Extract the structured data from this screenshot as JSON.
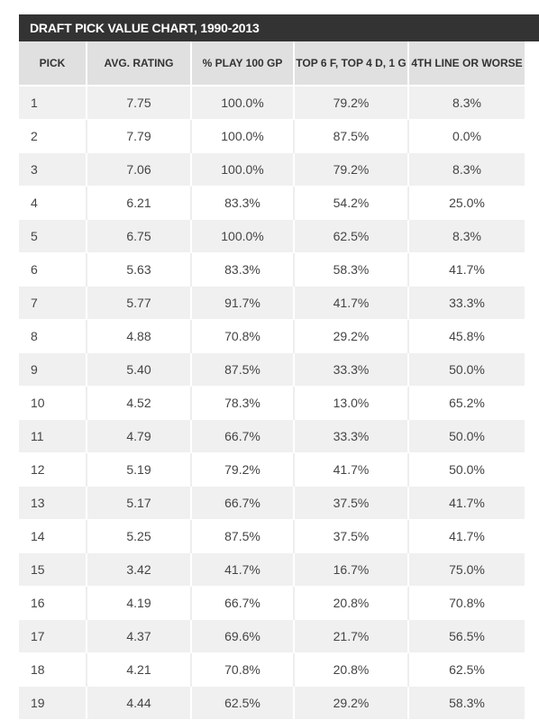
{
  "title": "DRAFT PICK VALUE CHART, 1990-2013",
  "columns": [
    "PICK",
    "AVG. RATING",
    "% PLAY 100 GP",
    "TOP 6 F, TOP 4 D, 1 G",
    "4TH LINE OR WORSE"
  ],
  "rows": [
    [
      "1",
      "7.75",
      "100.0%",
      "79.2%",
      "8.3%"
    ],
    [
      "2",
      "7.79",
      "100.0%",
      "87.5%",
      "0.0%"
    ],
    [
      "3",
      "7.06",
      "100.0%",
      "79.2%",
      "8.3%"
    ],
    [
      "4",
      "6.21",
      "83.3%",
      "54.2%",
      "25.0%"
    ],
    [
      "5",
      "6.75",
      "100.0%",
      "62.5%",
      "8.3%"
    ],
    [
      "6",
      "5.63",
      "83.3%",
      "58.3%",
      "41.7%"
    ],
    [
      "7",
      "5.77",
      "91.7%",
      "41.7%",
      "33.3%"
    ],
    [
      "8",
      "4.88",
      "70.8%",
      "29.2%",
      "45.8%"
    ],
    [
      "9",
      "5.40",
      "87.5%",
      "33.3%",
      "50.0%"
    ],
    [
      "10",
      "4.52",
      "78.3%",
      "13.0%",
      "65.2%"
    ],
    [
      "11",
      "4.79",
      "66.7%",
      "33.3%",
      "50.0%"
    ],
    [
      "12",
      "5.19",
      "79.2%",
      "41.7%",
      "50.0%"
    ],
    [
      "13",
      "5.17",
      "66.7%",
      "37.5%",
      "41.7%"
    ],
    [
      "14",
      "5.25",
      "87.5%",
      "37.5%",
      "41.7%"
    ],
    [
      "15",
      "3.42",
      "41.7%",
      "16.7%",
      "75.0%"
    ],
    [
      "16",
      "4.19",
      "66.7%",
      "20.8%",
      "70.8%"
    ],
    [
      "17",
      "4.37",
      "69.6%",
      "21.7%",
      "56.5%"
    ],
    [
      "18",
      "4.21",
      "70.8%",
      "20.8%",
      "62.5%"
    ],
    [
      "19",
      "4.44",
      "62.5%",
      "29.2%",
      "58.3%"
    ]
  ]
}
